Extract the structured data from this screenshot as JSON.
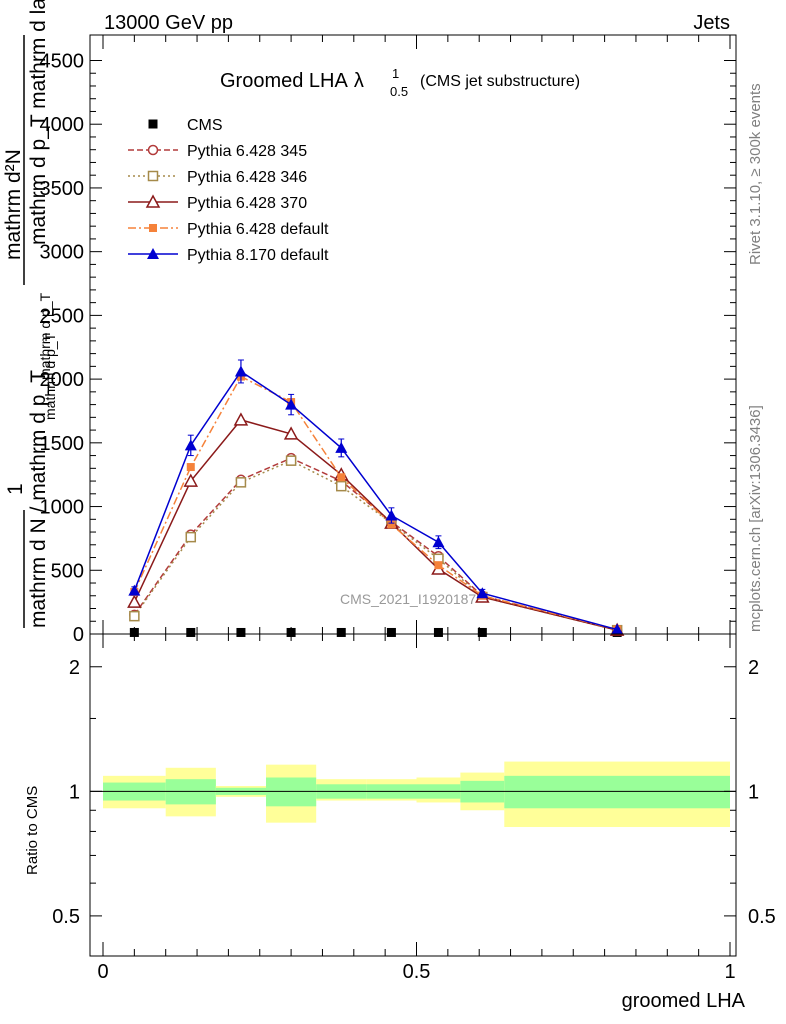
{
  "header": {
    "left": "13000 GeV pp",
    "right": "Jets"
  },
  "side_labels": {
    "rivet": "Rivet 3.1.10, ≥ 300k events",
    "mcplots": "mcplots.cern.ch [arXiv:1306.3436]"
  },
  "colors": {
    "cms": "#000000",
    "p345": "#b23b3b",
    "p346": "#a58a4a",
    "p370": "#8b1a1a",
    "p6def": "#f5823a",
    "p8def": "#0000d0",
    "band_inner": "#99ff99",
    "band_outer": "#ffff99"
  },
  "chart_data": [
    {
      "type": "line",
      "title_main": "Groomed LHA",
      "title_lambda": "λ",
      "title_sub": "0.5",
      "title_sup": "1",
      "title_note": "(CMS jet substructure)",
      "ylabel_main": "mathrm d²N",
      "ylabel_lines": [
        "mathrm d p_T mathrm d lambda",
        "mathrm d p_T",
        "1",
        "mathrm d N / mathrm d p_T"
      ],
      "watermark": "CMS_2021_I1920187",
      "xlim": [
        0,
        1
      ],
      "ylim": [
        0,
        4700
      ],
      "y_ticks": [
        0,
        500,
        1000,
        1500,
        2000,
        2500,
        3000,
        3500,
        4000,
        4500
      ],
      "y_tick_labels": [
        "0",
        "500",
        "1000",
        "1500",
        "2000",
        "2500",
        "3000",
        "3500",
        "4000",
        "4500"
      ],
      "bins": [
        0,
        0.1,
        0.18,
        0.26,
        0.34,
        0.42,
        0.5,
        0.57,
        0.64,
        1.0
      ],
      "legend_position": "top-left",
      "series": [
        {
          "name": "CMS",
          "key": "cms",
          "style": "solid",
          "marker": "square",
          "x": [
            0.05,
            0.14,
            0.22,
            0.3,
            0.38,
            0.46,
            0.535,
            0.605,
            0.82
          ],
          "y": [
            12,
            12,
            12,
            12,
            12,
            12,
            12,
            12,
            12
          ]
        },
        {
          "name": "Pythia 6.428 345",
          "key": "p345",
          "style": "dashed",
          "marker": "circle",
          "x": [
            0.05,
            0.14,
            0.22,
            0.3,
            0.38,
            0.46,
            0.535,
            0.605,
            0.82
          ],
          "y": [
            150,
            780,
            1210,
            1380,
            1200,
            880,
            610,
            300,
            30
          ]
        },
        {
          "name": "Pythia 6.428 346",
          "key": "p346",
          "style": "dotted",
          "marker": "square-open",
          "x": [
            0.05,
            0.14,
            0.22,
            0.3,
            0.38,
            0.46,
            0.535,
            0.605,
            0.82
          ],
          "y": [
            140,
            760,
            1190,
            1360,
            1160,
            870,
            590,
            290,
            30
          ]
        },
        {
          "name": "Pythia 6.428 370",
          "key": "p370",
          "style": "solid",
          "marker": "triangle-open",
          "x": [
            0.05,
            0.14,
            0.22,
            0.3,
            0.38,
            0.46,
            0.535,
            0.605,
            0.82
          ],
          "y": [
            250,
            1200,
            1680,
            1570,
            1250,
            870,
            510,
            290,
            30
          ]
        },
        {
          "name": "Pythia 6.428 default",
          "key": "p6def",
          "style": "dashdot",
          "marker": "square-filled",
          "x": [
            0.05,
            0.14,
            0.22,
            0.3,
            0.38,
            0.46,
            0.535,
            0.605,
            0.82
          ],
          "y": [
            330,
            1310,
            2020,
            1820,
            1230,
            860,
            540,
            300,
            35
          ]
        },
        {
          "name": "Pythia 8.170 default",
          "key": "p8def",
          "style": "solid",
          "marker": "triangle-filled",
          "x": [
            0.05,
            0.14,
            0.22,
            0.3,
            0.38,
            0.46,
            0.535,
            0.605,
            0.82
          ],
          "y": [
            340,
            1480,
            2060,
            1800,
            1460,
            930,
            720,
            320,
            35
          ],
          "err": [
            30,
            80,
            90,
            80,
            70,
            60,
            50,
            30,
            10
          ]
        }
      ]
    },
    {
      "type": "area",
      "ylabel": "Ratio to CMS",
      "xlabel": "groomed LHA",
      "xlim": [
        0,
        1
      ],
      "ylim": [
        0.4,
        2.4
      ],
      "y_scale": "log",
      "y_ticks": [
        0.5,
        1,
        2
      ],
      "y_tick_labels": [
        "0.5",
        "1",
        "2"
      ],
      "x_ticks": [
        0,
        0.5,
        1
      ],
      "x_tick_labels": [
        "0",
        "0.5",
        "1"
      ],
      "bins": [
        0,
        0.1,
        0.18,
        0.26,
        0.34,
        0.42,
        0.5,
        0.57,
        0.64,
        1.0
      ],
      "inner_lo": [
        0.95,
        0.93,
        0.98,
        0.92,
        0.96,
        0.96,
        0.96,
        0.94,
        0.91
      ],
      "inner_hi": [
        1.05,
        1.07,
        1.02,
        1.08,
        1.04,
        1.04,
        1.04,
        1.06,
        1.09
      ],
      "outer_lo": [
        0.91,
        0.87,
        0.97,
        0.84,
        0.95,
        0.95,
        0.94,
        0.9,
        0.82
      ],
      "outer_hi": [
        1.09,
        1.14,
        1.03,
        1.16,
        1.07,
        1.07,
        1.08,
        1.11,
        1.18
      ]
    }
  ]
}
